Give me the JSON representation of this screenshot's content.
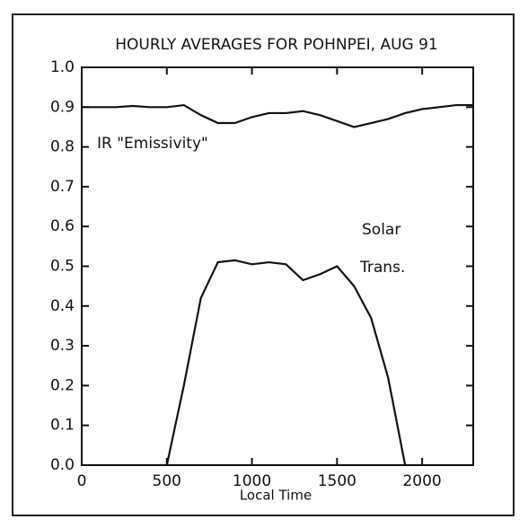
{
  "chart_data": {
    "type": "line",
    "title": "HOURLY AVERAGES FOR POHNPEI,  AUG 91",
    "x_label": "Local Time",
    "annotations": [
      "IR \"Emissivity\"",
      "Solar",
      "Trans."
    ],
    "x": [
      0,
      100,
      200,
      300,
      400,
      500,
      600,
      700,
      800,
      900,
      1000,
      1100,
      1200,
      1300,
      1400,
      1500,
      1600,
      1700,
      1800,
      1900,
      2000,
      2100,
      2200,
      2300
    ],
    "series": [
      {
        "name": "IR \"Emissivity\"",
        "color": "#111111",
        "values": [
          0.9,
          0.9,
          0.9,
          0.903,
          0.9,
          0.9,
          0.905,
          0.88,
          0.86,
          0.86,
          0.875,
          0.885,
          0.885,
          0.89,
          0.88,
          0.865,
          0.85,
          0.86,
          0.87,
          0.885,
          0.895,
          0.9,
          0.905,
          0.905
        ]
      },
      {
        "name": "Solar Trans.",
        "color": "#111111",
        "values": [
          null,
          null,
          null,
          null,
          null,
          0.0,
          0.2,
          0.42,
          0.51,
          0.515,
          0.505,
          0.51,
          0.505,
          0.465,
          0.48,
          0.5,
          0.45,
          0.37,
          0.22,
          0.0,
          null,
          null,
          null,
          null
        ]
      }
    ],
    "xlim": [
      0,
      2300
    ],
    "xticks": [
      0,
      500,
      1000,
      1500,
      2000
    ],
    "ylim": [
      0,
      1.0
    ],
    "yticks": [
      {
        "value": 0,
        "label": "0.0"
      },
      {
        "value": 0.1,
        "label": "0.1"
      },
      {
        "value": 0.2,
        "label": "0.2"
      },
      {
        "value": 0.3,
        "label": "0.3"
      },
      {
        "value": 0.4,
        "label": "0.4"
      },
      {
        "value": 0.5,
        "label": "0.5"
      },
      {
        "value": 0.6,
        "label": "0.6"
      },
      {
        "value": 0.7,
        "label": "0.7"
      },
      {
        "value": 0.8,
        "label": "0.8"
      },
      {
        "value": 0.9,
        "label": "0.9"
      },
      {
        "value": 1.0,
        "label": "1.0"
      }
    ],
    "grid": false
  }
}
